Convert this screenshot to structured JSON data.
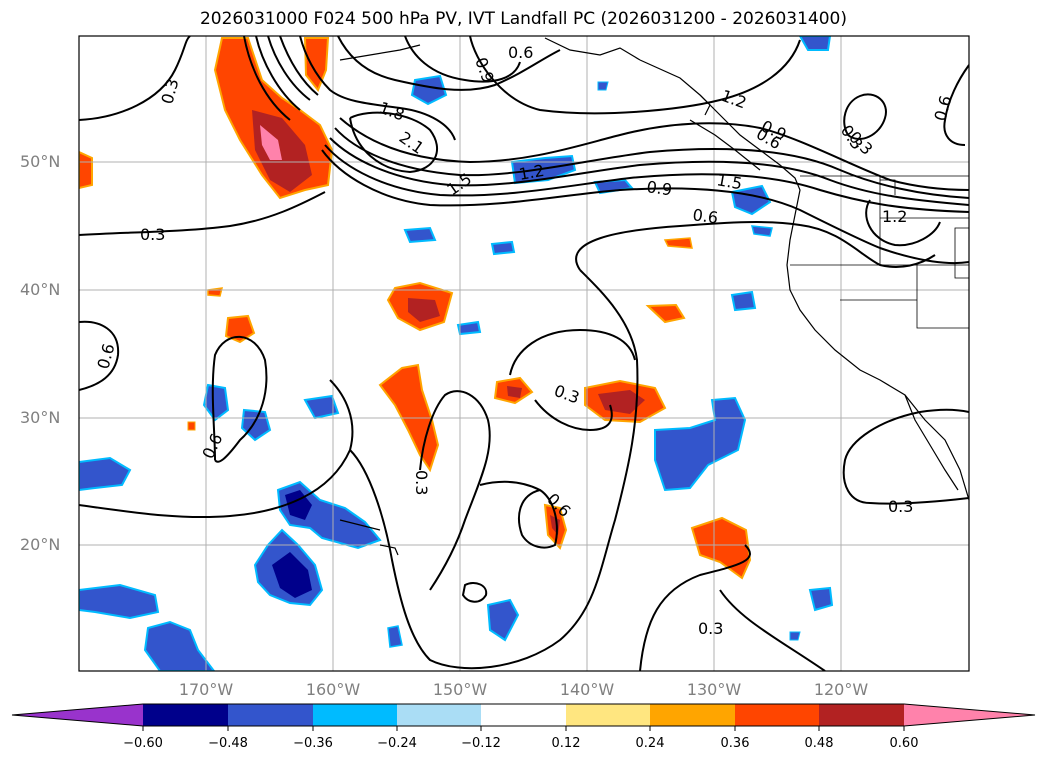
{
  "title": "2026031000 F024 500 hPa PV, IVT Landfall PC (2026031200 - 2026031400)",
  "map": {
    "lon_labels": [
      "170°W",
      "160°W",
      "150°W",
      "140°W",
      "130°W",
      "120°W"
    ],
    "lat_labels": [
      "50°N",
      "40°N",
      "30°N",
      "20°N"
    ],
    "contour_labels": [
      "0.3",
      "0.6",
      "0.9",
      "1.2",
      "1.5",
      "1.8",
      "2.1",
      "0.3",
      "0.6",
      "0.9",
      "1.2",
      "1.5",
      "0.3",
      "0.6",
      "0.3",
      "0.6",
      "0.3",
      "0.6",
      "0.3",
      "0.3",
      "0.6",
      "0.9",
      "0.3",
      "0.6",
      "1.2"
    ]
  },
  "colorbar": {
    "tick_labels": [
      "−0.60",
      "−0.48",
      "−0.36",
      "−0.24",
      "−0.12",
      "0.12",
      "0.24",
      "0.36",
      "0.48",
      "0.60"
    ],
    "colors": [
      "#9933cc",
      "#00008b",
      "#3355cc",
      "#00bbff",
      "#aaddf5",
      "#ffffff",
      "#ffe680",
      "#ffa500",
      "#ff4500",
      "#b22222",
      "#ff82ab"
    ]
  },
  "colors": {
    "neg_dark": "#00008b",
    "neg_mid": "#3355cc",
    "neg_light": "#00bbff",
    "pos_light": "#ffe680",
    "pos_orange": "#ffa500",
    "pos_red": "#ff4500",
    "pos_dark": "#b22222",
    "pos_pink": "#ff82ab"
  }
}
